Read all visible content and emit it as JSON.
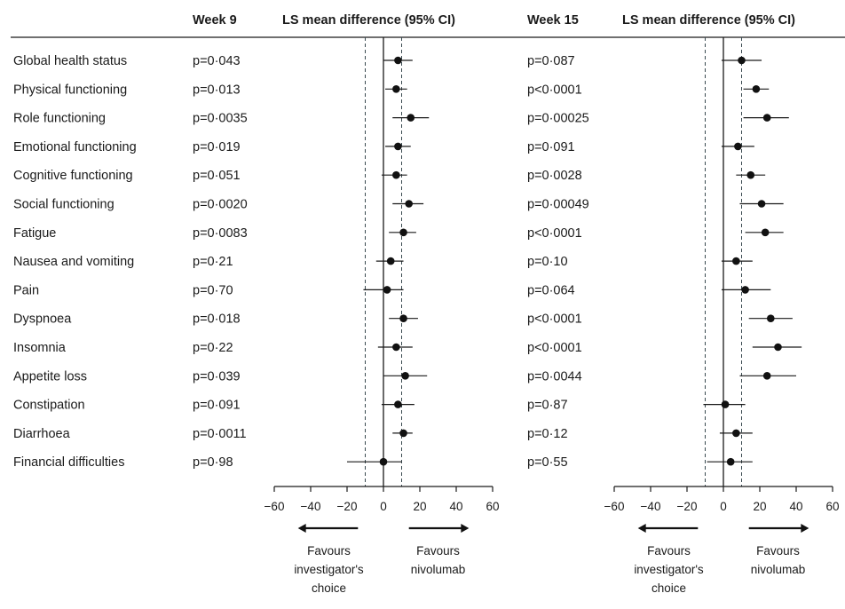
{
  "headers": {
    "week9": "Week 9",
    "ls_mean_9": "LS mean difference (95% CI)",
    "week15": "Week 15",
    "ls_mean_15": "LS mean difference (95% CI)"
  },
  "favours": {
    "left": [
      "Favours",
      "investigator's",
      "choice"
    ],
    "right": [
      "Favours",
      "nivolumab"
    ]
  },
  "chart_data": [
    {
      "type": "forest",
      "panel": "Week 9",
      "xlim": [
        -60,
        60
      ],
      "xticks": [
        "-60",
        "-40",
        "-20",
        "0",
        "20",
        "40",
        "60"
      ],
      "reference_lines": {
        "solid": 0,
        "dashed": [
          -10,
          10
        ]
      },
      "categories": [
        "Global health status",
        "Physical functioning",
        "Role functioning",
        "Emotional functioning",
        "Cognitive functioning",
        "Social functioning",
        "Fatigue",
        "Nausea and vomiting",
        "Pain",
        "Dyspnoea",
        "Insomnia",
        "Appetite loss",
        "Constipation",
        "Diarrhoea",
        "Financial difficulties"
      ],
      "p_values": [
        "p=0·043",
        "p=0·013",
        "p=0·0035",
        "p=0·019",
        "p=0·051",
        "p=0·0020",
        "p=0·0083",
        "p=0·21",
        "p=0·70",
        "p=0·018",
        "p=0·22",
        "p=0·039",
        "p=0·091",
        "p=0·0011",
        "p=0·98"
      ],
      "estimates": [
        8,
        7,
        15,
        8,
        7,
        14,
        11,
        4,
        2,
        11,
        7,
        12,
        8,
        11,
        0
      ],
      "ci_lower": [
        0,
        1,
        5,
        1,
        -1,
        5,
        3,
        -4,
        -11,
        3,
        -3,
        0,
        -1,
        5,
        -20
      ],
      "ci_upper": [
        16,
        13,
        25,
        15,
        13,
        22,
        18,
        11,
        11,
        19,
        16,
        24,
        17,
        16,
        10
      ]
    },
    {
      "type": "forest",
      "panel": "Week 15",
      "xlim": [
        -60,
        60
      ],
      "xticks": [
        "-60",
        "-40",
        "-20",
        "0",
        "20",
        "40",
        "60"
      ],
      "reference_lines": {
        "solid": 0,
        "dashed": [
          -10,
          10
        ]
      },
      "categories": [
        "Global health status",
        "Physical functioning",
        "Role functioning",
        "Emotional functioning",
        "Cognitive functioning",
        "Social functioning",
        "Fatigue",
        "Nausea and vomiting",
        "Pain",
        "Dyspnoea",
        "Insomnia",
        "Appetite loss",
        "Constipation",
        "Diarrhoea",
        "Financial difficulties"
      ],
      "p_values": [
        "p=0·087",
        "p<0·0001",
        "p=0·00025",
        "p=0·091",
        "p=0·0028",
        "p=0·00049",
        "p<0·0001",
        "p=0·10",
        "p=0·064",
        "p<0·0001",
        "p<0·0001",
        "p=0·0044",
        "p=0·87",
        "p=0·12",
        "p=0·55"
      ],
      "estimates": [
        10,
        18,
        24,
        8,
        15,
        21,
        23,
        7,
        12,
        26,
        30,
        24,
        1,
        7,
        4
      ],
      "ci_lower": [
        -1,
        11,
        11,
        -1,
        7,
        9,
        12,
        -1,
        -1,
        14,
        16,
        9,
        -11,
        -2,
        -9
      ],
      "ci_upper": [
        21,
        25,
        36,
        17,
        23,
        33,
        33,
        16,
        26,
        38,
        43,
        40,
        12,
        16,
        16
      ]
    }
  ]
}
